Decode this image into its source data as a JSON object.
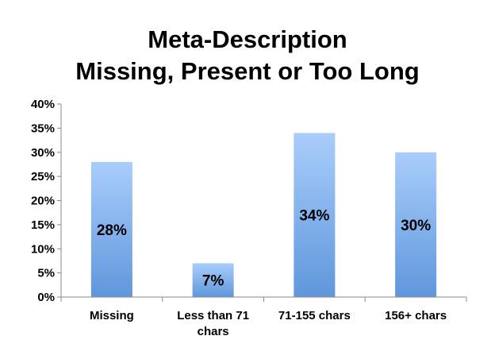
{
  "chart_data": {
    "type": "bar",
    "title_lines": [
      "Meta-Description",
      "Missing, Present or Too Long"
    ],
    "categories": [
      [
        "Missing"
      ],
      [
        "Less than 71",
        "chars"
      ],
      [
        "71-155 chars"
      ],
      [
        "156+ chars"
      ]
    ],
    "values": [
      28,
      7,
      34,
      30
    ],
    "data_labels": [
      "28%",
      "7%",
      "34%",
      "30%"
    ],
    "ylim": [
      0,
      40
    ],
    "y_ticks": [
      0,
      5,
      10,
      15,
      20,
      25,
      30,
      35,
      40
    ],
    "y_tick_labels": [
      "0%",
      "5%",
      "10%",
      "15%",
      "20%",
      "25%",
      "30%",
      "35%",
      "40%"
    ],
    "grid": false,
    "legend": "none",
    "colors": {
      "bar_top": "#a9cdfb",
      "bar_bottom": "#5f97dc",
      "axis": "#888888"
    }
  }
}
